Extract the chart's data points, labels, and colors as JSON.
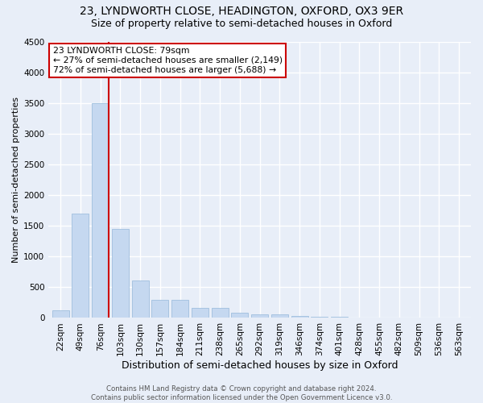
{
  "title1": "23, LYNDWORTH CLOSE, HEADINGTON, OXFORD, OX3 9ER",
  "title2": "Size of property relative to semi-detached houses in Oxford",
  "xlabel": "Distribution of semi-detached houses by size in Oxford",
  "ylabel": "Number of semi-detached properties",
  "categories": [
    "22sqm",
    "49sqm",
    "76sqm",
    "103sqm",
    "130sqm",
    "157sqm",
    "184sqm",
    "211sqm",
    "238sqm",
    "265sqm",
    "292sqm",
    "319sqm",
    "346sqm",
    "374sqm",
    "401sqm",
    "428sqm",
    "455sqm",
    "482sqm",
    "509sqm",
    "536sqm",
    "563sqm"
  ],
  "values": [
    120,
    1700,
    3500,
    1450,
    610,
    300,
    300,
    160,
    160,
    80,
    60,
    55,
    35,
    20,
    15,
    10,
    8,
    5,
    5,
    5,
    5
  ],
  "ylim": [
    0,
    4500
  ],
  "bar_color": "#c5d8f0",
  "bar_edge_color": "#a0bfde",
  "red_line_x": 2,
  "annotation_line1": "23 LYNDWORTH CLOSE: 79sqm",
  "annotation_line2": "← 27% of semi-detached houses are smaller (2,149)",
  "annotation_line3": "72% of semi-detached houses are larger (5,688) →",
  "annotation_box_facecolor": "#ffffff",
  "annotation_box_edgecolor": "#cc0000",
  "footer": "Contains HM Land Registry data © Crown copyright and database right 2024.\nContains public sector information licensed under the Open Government Licence v3.0.",
  "background_color": "#e8eef8",
  "grid_color": "#ffffff",
  "title1_fontsize": 10,
  "title2_fontsize": 9,
  "ylabel_fontsize": 8,
  "xlabel_fontsize": 9,
  "tick_fontsize": 7.5,
  "yticks": [
    0,
    500,
    1000,
    1500,
    2000,
    2500,
    3000,
    3500,
    4000,
    4500
  ]
}
